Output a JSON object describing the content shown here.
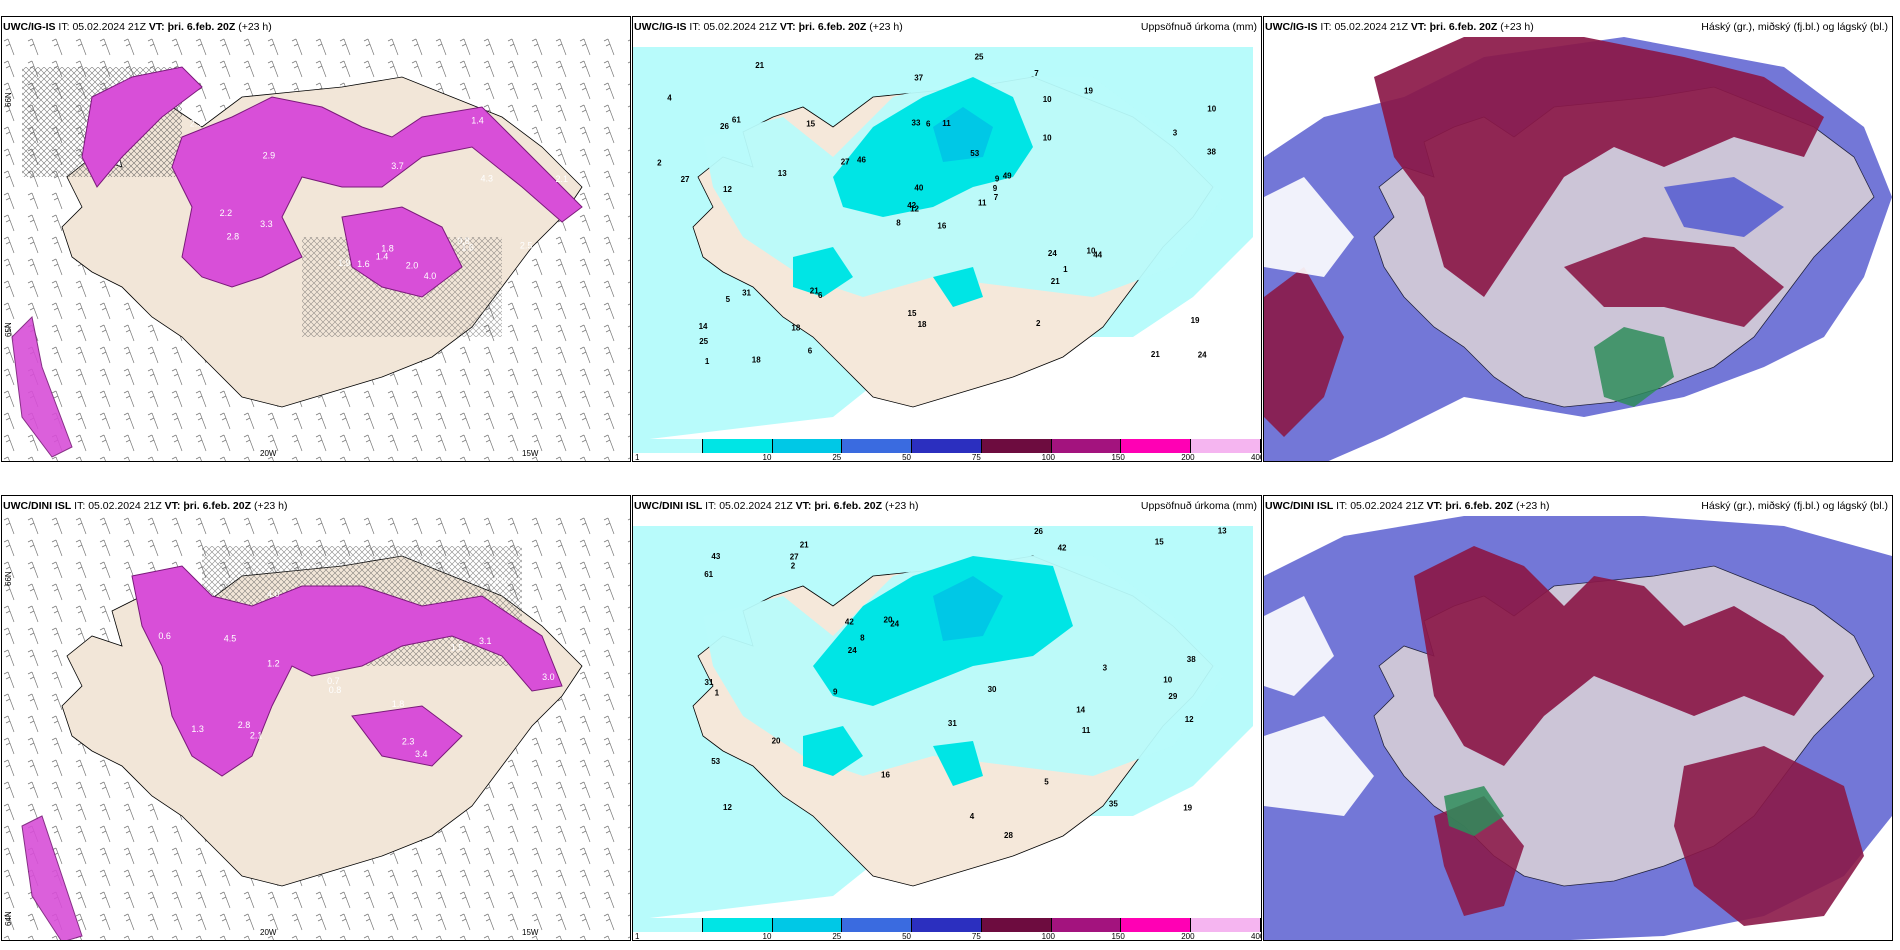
{
  "panels": {
    "tl": {
      "model": "UWC/IG-IS",
      "it_label": "IT:",
      "it": "05.02.2024 21Z",
      "vt_label": "VT:",
      "vt": "þri. 6.feb. 20Z",
      "lead": "(+23 h)",
      "right": ""
    },
    "tc": {
      "model": "UWC/IG-IS",
      "it_label": "IT:",
      "it": "05.02.2024 21Z",
      "vt_label": "VT:",
      "vt": "þri. 6.feb. 20Z",
      "lead": "(+23 h)",
      "right": "Uppsöfnuð úrkoma (mm)"
    },
    "tr": {
      "model": "UWC/IG-IS",
      "it_label": "IT:",
      "it": "05.02.2024 21Z",
      "vt_label": "VT:",
      "vt": "þri. 6.feb. 20Z",
      "lead": "(+23 h)",
      "right": "Háský (gr.), miðský (fj.bl.) og lágský (bl.)"
    },
    "bl": {
      "model": "UWC/DINI ISL",
      "it_label": "IT:",
      "it": "05.02.2024 21Z",
      "vt_label": "VT:",
      "vt": "þri. 6.feb. 20Z",
      "lead": "(+23 h)",
      "right": ""
    },
    "bc": {
      "model": "UWC/DINI ISL",
      "it_label": "IT:",
      "it": "05.02.2024 21Z",
      "vt_label": "VT:",
      "vt": "þri. 6.feb. 20Z",
      "lead": "(+23 h)",
      "right": "Uppsöfnuð úrkoma (mm)"
    },
    "br": {
      "model": "UWC/DINI ISL",
      "it_label": "IT:",
      "it": "05.02.2024 21Z",
      "vt_label": "VT:",
      "vt": "þri. 6.feb. 20Z",
      "lead": "(+23 h)",
      "right": "Háský (gr.), miðský (fj.bl.) og lágský (bl.)"
    }
  },
  "axis_labels": {
    "lon_20w": "20W",
    "lon_15w": "15W",
    "lat_66n": "66N",
    "lat_65n": "65N",
    "lat_64n": "64N"
  },
  "colorbar": {
    "ticks": [
      "1",
      "10",
      "25",
      "50",
      "75",
      "100",
      "150",
      "200",
      "400"
    ],
    "colors": [
      "#b8fbfb",
      "#00e5e5",
      "#00c8e6",
      "#3a6be0",
      "#2b2fbf",
      "#6d0c3f",
      "#a3137e",
      "#ff00b4",
      "#f5b5f0"
    ]
  },
  "precip_labels_top": [
    "16",
    "26",
    "12",
    "14",
    "9",
    "6",
    "7",
    "11",
    "10",
    "11",
    "21",
    "24",
    "12",
    "10",
    "8",
    "10",
    "18",
    "33",
    "53",
    "31",
    "46",
    "25",
    "18",
    "6",
    "49",
    "44",
    "61",
    "37",
    "27",
    "24",
    "38",
    "42",
    "15",
    "40",
    "15",
    "19",
    "21",
    "21",
    "19",
    "10",
    "25",
    "27",
    "13",
    "21",
    "6",
    "2",
    "9",
    "1",
    "18",
    "7",
    "5",
    "3",
    "4",
    "1",
    "2"
  ],
  "precip_labels_bottom": [
    "14",
    "29",
    "12",
    "21",
    "24",
    "35",
    "53",
    "42",
    "42",
    "28",
    "61",
    "31",
    "43",
    "19",
    "16",
    "38",
    "31",
    "30",
    "20",
    "20",
    "13",
    "15",
    "24",
    "12",
    "26",
    "27",
    "11",
    "1",
    "2",
    "3",
    "4",
    "5",
    "8",
    "9",
    "10"
  ],
  "wind_labels_top": [
    "1.9",
    "1.8",
    "3.7",
    "2.9",
    "2.1",
    "2.8",
    "1.4",
    "2.2",
    "4.3",
    "2.9",
    "3.3",
    "2.5",
    "1.6",
    "4.0",
    "1.4",
    "2.0",
    "0.8",
    "1.6"
  ],
  "wind_labels_bottom": [
    "3.4",
    "4.0",
    "2.8",
    "4.5",
    "3.1",
    "2.3",
    "3.0",
    "1.2",
    "0.8",
    "2.1",
    "1.3",
    "0.6",
    "0.7",
    "1.8",
    "1.5",
    "2.0"
  ],
  "colors": {
    "land": "#f2e6d8",
    "sea_precip": "#b8fbfb",
    "precip_mid": "#00e5e5",
    "precip_dark": "#00c8e6",
    "magenta": "#d84fd8",
    "magenta_dark": "#7a1a7a",
    "cloud_high": "#8b1848",
    "cloud_mid": "#5a5fd0",
    "cloud_low": "#2e8c5a"
  }
}
